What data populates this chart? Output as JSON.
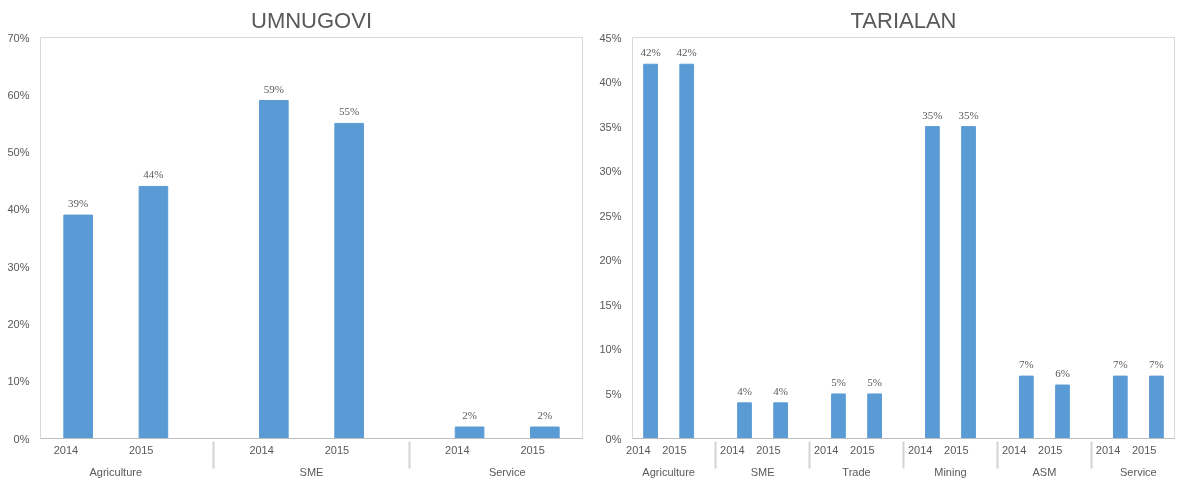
{
  "chart_data": [
    {
      "type": "bar",
      "title": "UMNUGOVI",
      "categories": [
        "2014",
        "2015",
        "2014",
        "2015",
        "2014",
        "2015"
      ],
      "annotations": [
        "Agriculture",
        "SME",
        "Service"
      ],
      "values": [
        39,
        44,
        59,
        55,
        2,
        2
      ],
      "color": "#5b9bd5",
      "value_labels": [
        "39%",
        "44%",
        "59%",
        "55%",
        "2%",
        "2%"
      ],
      "ylim": [
        0,
        70
      ],
      "yticks": [
        {
          "value": 0,
          "label": "0%"
        },
        {
          "value": 10,
          "label": "10%"
        },
        {
          "value": 20,
          "label": "20%"
        },
        {
          "value": 30,
          "label": "30%"
        },
        {
          "value": 40,
          "label": "40%"
        },
        {
          "value": 50,
          "label": "50%"
        },
        {
          "value": 60,
          "label": "60%"
        },
        {
          "value": 70,
          "label": "70%"
        }
      ],
      "grid": false
    },
    {
      "type": "bar",
      "title": "TARIALAN",
      "categories": [
        "2014",
        "2015",
        "2014",
        "2015",
        "2014",
        "2015",
        "2014",
        "2015",
        "2014",
        "2015",
        "2014",
        "2015"
      ],
      "annotations": [
        "Agriculture",
        "SME",
        "Trade",
        "Mining",
        "ASM",
        "Service"
      ],
      "values": [
        42,
        42,
        4,
        4,
        5,
        5,
        35,
        35,
        7,
        6,
        7,
        7
      ],
      "color": "#5b9bd5",
      "value_labels": [
        "42%",
        "42%",
        "4%",
        "4%",
        "5%",
        "5%",
        "35%",
        "35%",
        "7%",
        "6%",
        "7%",
        "7%"
      ],
      "ylim": [
        0,
        45
      ],
      "yticks": [
        {
          "value": 0,
          "label": "0%"
        },
        {
          "value": 5,
          "label": "5%"
        },
        {
          "value": 10,
          "label": "10%"
        },
        {
          "value": 15,
          "label": "15%"
        },
        {
          "value": 20,
          "label": "20%"
        },
        {
          "value": 25,
          "label": "25%"
        },
        {
          "value": 30,
          "label": "30%"
        },
        {
          "value": 35,
          "label": "35%"
        },
        {
          "value": 40,
          "label": "40%"
        },
        {
          "value": 45,
          "label": "45%"
        }
      ],
      "grid": false
    }
  ]
}
